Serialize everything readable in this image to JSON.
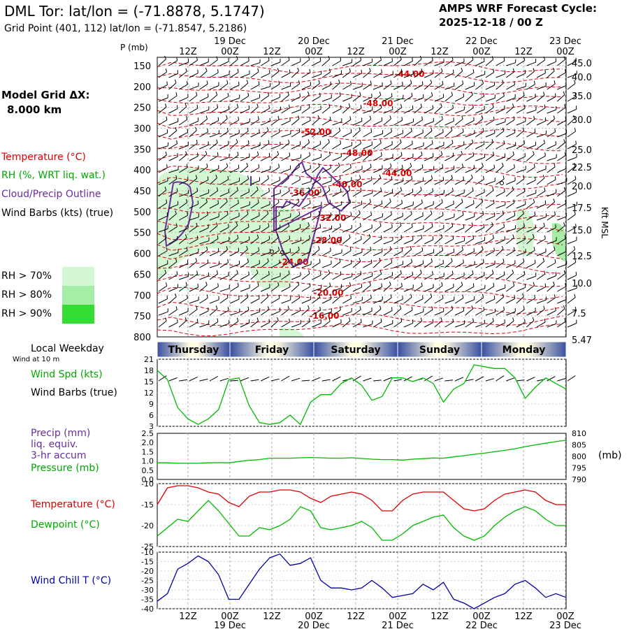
{
  "header": {
    "title": "DML Tor:  lat/lon = (-71.8878, 5.1747)",
    "grid_point": "Grid Point (401, 112) lat/lon = (-71.8547, 5.2186)",
    "amps_title": "AMPS WRF Forecast Cycle:",
    "amps_cycle": "2025-12-18 / 00  Z"
  },
  "left_panel": {
    "model_grid_label": "Model Grid ΔX:",
    "model_grid_value": "8.000 km",
    "pressure_axis_label": "P (mb)",
    "legend_temperature": "Temperature (°C)",
    "legend_rh": "RH (%, WRT liq. wat.)",
    "legend_cloud": "Cloud/Precip Outline",
    "legend_wind": "Wind Barbs (kts) (true)",
    "rh_levels": [
      "RH > 70%",
      "RH > 80%",
      "RH > 90%"
    ],
    "local_weekday": "Local Weekday",
    "wind_at_10m": "Wind at 10 m",
    "wind_spd": "Wind Spd (kts)",
    "wind_barbs": "Wind Barbs (true)",
    "precip_1": "Precip (mm)",
    "precip_2": "liq. equiv.",
    "precip_3": "3-hr accum",
    "pressure": "Pressure (mb)",
    "pressure_unit": "(mb)",
    "temperature": "Temperature (°C)",
    "dewpoint": "Dewpoint (°C)",
    "wind_chill": "Wind Chill T (°C)"
  },
  "colors": {
    "temperature": "#e00000",
    "rh": "#00aa00",
    "cloud": "#6a2c9c",
    "wind_chill": "#0000aa",
    "rh70": "#d2f7d2",
    "rh80": "#a6eda6",
    "rh90": "#33dd33"
  },
  "chart_data": [
    {
      "type": "time-height cross-section",
      "time_axis": {
        "tick_labels": [
          "12Z",
          "00Z",
          "12Z",
          "00Z",
          "12Z",
          "00Z",
          "12Z",
          "00Z",
          "12Z",
          "00Z"
        ],
        "date_labels": [
          "19 Dec",
          "20 Dec",
          "21 Dec",
          "22 Dec",
          "23 Dec"
        ],
        "weekdays": [
          "Thursday",
          "Friday",
          "Saturday",
          "Sunday",
          "Monday"
        ]
      },
      "pressure_levels": [
        150,
        200,
        250,
        300,
        350,
        400,
        450,
        500,
        550,
        600,
        650,
        700,
        750,
        800
      ],
      "pressure_range_mb": [
        800,
        130
      ],
      "height_kft_labels": [
        "45.0",
        "40.0",
        "35.0",
        "30.0",
        "25.0",
        "22.5",
        "20.0",
        "17.5",
        "15.0",
        "12.5",
        "10.0",
        "7.5",
        "5.47"
      ],
      "height_axis_label": "Kft MSL",
      "temperature_contour_labels": [
        "-44.00",
        "-48.00",
        "-52.00",
        "-48.00",
        "-44.00",
        "-36.00",
        "-40.00",
        "-32.00",
        "-28.00",
        "-24.00",
        "-20.00",
        "-16.00"
      ]
    },
    {
      "type": "line",
      "title": "Wind Spd (kts)",
      "ylim": [
        3,
        21
      ],
      "yticks": [
        3,
        6,
        9,
        12,
        15,
        18,
        21
      ],
      "series": [
        {
          "name": "Wind Spd",
          "color": "#00bb00",
          "x": [
            0,
            1,
            2,
            3,
            4,
            5,
            6,
            7,
            8,
            9,
            10,
            11,
            12,
            13,
            14,
            15,
            16,
            17,
            18,
            19,
            20,
            21,
            22,
            23,
            24,
            25,
            26,
            27,
            28,
            29,
            30,
            31,
            32,
            33,
            34,
            35,
            36,
            37,
            38,
            39,
            40
          ],
          "values": [
            18,
            15.5,
            8,
            5,
            3.5,
            5,
            7.5,
            15.5,
            16,
            8.5,
            4,
            3.5,
            4,
            6,
            3.5,
            9.5,
            11.5,
            11.5,
            14.5,
            16,
            14,
            10,
            11,
            16,
            16,
            15,
            16,
            14.5,
            9.5,
            13,
            14.5,
            19.5,
            19,
            18.5,
            18.5,
            16,
            10.5,
            13.5,
            16,
            14.5,
            13
          ]
        }
      ]
    },
    {
      "type": "line",
      "title": "Pressure (mb)",
      "precip_ylim_mm": [
        0,
        2.5
      ],
      "precip_yticks": [
        "0.0",
        "0.5",
        "1.0",
        "1.5",
        "2.0",
        "2.5"
      ],
      "pressure_ylim_mb": [
        790,
        810
      ],
      "pressure_yticks": [
        "790",
        "795",
        "800",
        "805",
        "810"
      ],
      "series": [
        {
          "name": "Pressure",
          "color": "#00bb00",
          "values": [
            797.2,
            797.2,
            797,
            797,
            797,
            797.2,
            797.3,
            797.2,
            797.8,
            798.3,
            798.6,
            799.2,
            799.2,
            799.2,
            799.4,
            799.5,
            799.4,
            799.2,
            799.2,
            799.4,
            799.1,
            798.8,
            798.6,
            798.6,
            798.4,
            798.8,
            799,
            799.3,
            799.2,
            799.8,
            800.3,
            800.9,
            801.4,
            802,
            802.6,
            803.3,
            804.2,
            805,
            805.7,
            806.4,
            807
          ]
        }
      ]
    },
    {
      "type": "line",
      "title": "Temperature / Dewpoint (°C)",
      "ylim": [
        -25,
        -10
      ],
      "yticks": [
        -25,
        -20,
        -15,
        -10
      ],
      "series": [
        {
          "name": "Temperature",
          "color": "#e00000",
          "values": [
            -15,
            -11,
            -10.5,
            -10.5,
            -11,
            -12,
            -12.5,
            -14.5,
            -15.5,
            -13,
            -12,
            -12,
            -11.5,
            -11.5,
            -12,
            -13.5,
            -14.5,
            -13,
            -12.5,
            -12,
            -12.5,
            -14,
            -16.5,
            -16.5,
            -14,
            -12.5,
            -12,
            -12,
            -12,
            -14,
            -16,
            -16.5,
            -16,
            -14,
            -12.5,
            -12,
            -11.5,
            -12,
            -14,
            -15,
            -15
          ]
        },
        {
          "name": "Dewpoint",
          "color": "#00bb00",
          "values": [
            -22.5,
            -20.5,
            -18.5,
            -19,
            -16.5,
            -14,
            -16.5,
            -19.5,
            -22.5,
            -22.5,
            -20.5,
            -21,
            -20,
            -18.5,
            -15.5,
            -16.5,
            -20.5,
            -21,
            -20.5,
            -20,
            -19,
            -20.5,
            -23.5,
            -23.5,
            -22,
            -20,
            -19,
            -18,
            -17.5,
            -20.5,
            -22.5,
            -23.5,
            -22.5,
            -20,
            -18,
            -16.5,
            -15.5,
            -16.5,
            -18.5,
            -20,
            -20
          ]
        }
      ]
    },
    {
      "type": "line",
      "title": "Wind Chill T (°C)",
      "ylim": [
        -40,
        -10
      ],
      "yticks": [
        -40,
        -35,
        -30,
        -25,
        -20,
        -15,
        -10
      ],
      "series": [
        {
          "name": "Wind Chill",
          "color": "#0000aa",
          "values": [
            -36,
            -32,
            -19,
            -16,
            -12,
            -15,
            -22,
            -35,
            -35,
            -27,
            -19,
            -13,
            -11,
            -17,
            -16,
            -13,
            -25,
            -29,
            -29,
            -30,
            -29,
            -25,
            -29,
            -34,
            -33,
            -32,
            -27,
            -30,
            -26,
            -35,
            -37,
            -40,
            -37,
            -34,
            -32,
            -27,
            -25,
            -29,
            -34,
            -32,
            -34
          ]
        }
      ]
    }
  ]
}
